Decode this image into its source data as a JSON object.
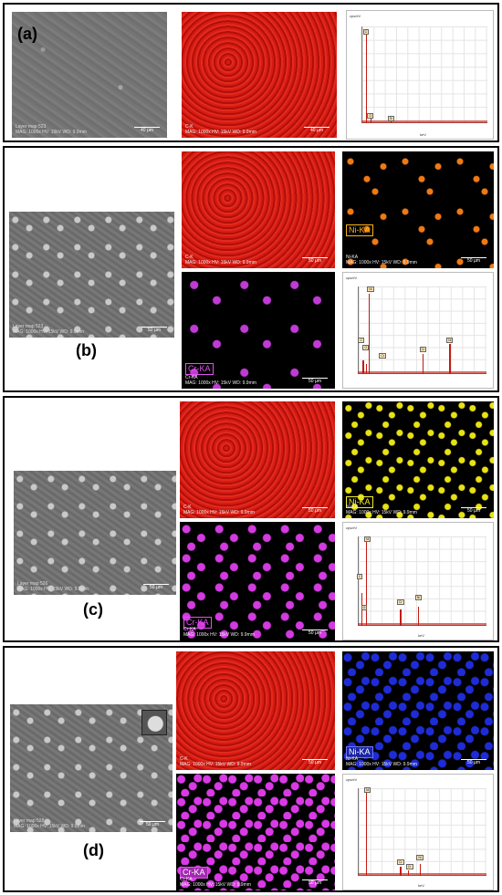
{
  "colors": {
    "map_red": "#d81a12",
    "ni_orange": "#f07a12",
    "ni_yellow": "#e8e214",
    "cr_magenta": "#d33ae0",
    "ni_blue": "#1e2cd6",
    "peak_red": "#c41a12"
  },
  "panels": [
    {
      "label": "(a)",
      "sem_caption_line1": "Layer map 523",
      "sem_caption_line2": "MAG: 1000x HV: 15kV WD: 9.9mm",
      "sem_scale": "40 µm",
      "carbon_map_caption_line1": "C-K",
      "carbon_map_caption_line2": "MAG: 1000x HV: 15kV WD: 9.9mm",
      "carbon_map_scale": "40 µm",
      "spectrum_y_label": "cps/eV",
      "spectrum_x_label": "keV",
      "spectrum_peaks": [
        "C",
        "O",
        "Si"
      ]
    },
    {
      "label": "(b)",
      "sem_caption_line1": "Layer map 523",
      "sem_caption_line2": "MAG: 1000x HV: 15kV WD: 9.9mm",
      "sem_scale": "50 µm",
      "carbon_map_caption_line1": "C-K",
      "carbon_map_caption_line2": "MAG: 1000x HV: 15kV WD: 9.9mm",
      "carbon_map_scale": "50 µm",
      "ni_badge": "Ni-KA",
      "ni_map_caption_line1": "Ni-KA",
      "ni_map_caption_line2": "MAG: 1000x HV: 15kV WD: 9.9mm",
      "ni_map_scale": "50 µm",
      "cr_badge": "Cr-KA",
      "cr_map_caption_line1": "Cr-KA",
      "cr_map_caption_line2": "MAG: 1000x HV: 15kV WD: 9.9mm",
      "cr_map_scale": "50 µm",
      "spectrum_y_label": "cps/eV",
      "spectrum_x_label": "keV",
      "spectrum_peaks": [
        "Ni",
        "C",
        "O",
        "Cr",
        "Cr",
        "Ni"
      ]
    },
    {
      "label": "(c)",
      "sem_caption_line1": "Layer map 526",
      "sem_caption_line2": "MAG: 1000x HV: 15kV WD: 9.9mm",
      "sem_scale": "50 µm",
      "carbon_map_caption_line1": "C-K",
      "carbon_map_caption_line2": "MAG: 1000x HV: 15kV WD: 9.9mm",
      "carbon_map_scale": "50 µm",
      "ni_badge": "Ni-KA",
      "ni_map_caption_line1": "Ni-KA",
      "ni_map_caption_line2": "MAG: 1000x HV: 15kV WD: 9.9mm",
      "ni_map_scale": "50 µm",
      "cr_badge": "Cr-KA",
      "cr_map_caption_line1": "Cr-KA",
      "cr_map_caption_line2": "MAG: 1000x HV: 15kV WD: 9.9mm",
      "cr_map_scale": "50 µm",
      "spectrum_y_label": "cps/eV",
      "spectrum_x_label": "keV",
      "spectrum_peaks": [
        "Ni",
        "C",
        "O",
        "Cr",
        "Ni"
      ]
    },
    {
      "label": "(d)",
      "sem_caption_line1": "Layer map 528",
      "sem_caption_line2": "MAG: 1000x HV: 15kV WD: 9.9mm",
      "sem_scale": "50 µm",
      "carbon_map_caption_line1": "C-K",
      "carbon_map_caption_line2": "MAG: 1000x HV: 15kV WD: 9.9mm",
      "carbon_map_scale": "50 µm",
      "ni_badge": "Ni-KA",
      "ni_map_caption_line1": "Ni-KA",
      "ni_map_caption_line2": "MAG: 1000x HV: 15kV WD: 9.9mm",
      "ni_map_scale": "50 µm",
      "cr_badge": "Cr-KA",
      "cr_map_caption_line1": "Cr-KA",
      "cr_map_caption_line2": "MAG: 1000x HV: 15kV WD: 9.9mm",
      "cr_map_scale": "50 µm",
      "spectrum_y_label": "cps/eV",
      "spectrum_x_label": "keV",
      "spectrum_peaks": [
        "Ni",
        "Cr",
        "Cr",
        "Ni"
      ]
    }
  ]
}
